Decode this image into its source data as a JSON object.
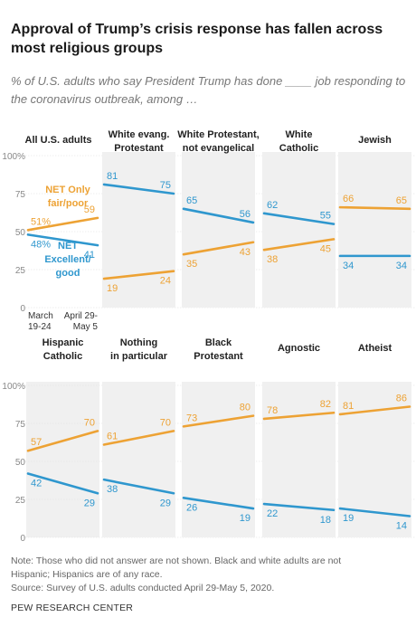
{
  "title": "Approval of Trump’s crisis response has fallen across most religious groups",
  "subtitle": "% of U.S. adults who say President Trump has done ____ job responding to the coronavirus outbreak, among …",
  "note_line1": "Note: Those who did not answer are not shown. Black and white adults are not",
  "note_line2": "Hispanic; Hispanics are of any race.",
  "source": "Source: Survey of U.S. adults conducted April 29-May 5, 2020.",
  "org": "PEW RESEARCH CENTER",
  "colors": {
    "fair_poor": "#eda234",
    "excellent_good": "#2f97ce",
    "panel_bg": "#f0f0f0",
    "grid": "#dddddd"
  },
  "chart_data": {
    "type": "line",
    "x": [
      "March 19-24",
      "April 29-May 5"
    ],
    "x_tick_labels": [
      [
        "March",
        "19-24"
      ],
      [
        "April 29-",
        "May 5"
      ]
    ],
    "y_ticks": [
      "100%",
      "75",
      "50",
      "25",
      "0"
    ],
    "ylim": [
      0,
      100
    ],
    "grid": true,
    "series_labels": {
      "fair_poor": [
        "NET Only",
        "fair/poor"
      ],
      "excellent_good": [
        "NET",
        "Excellent/",
        "good"
      ]
    },
    "panels": [
      {
        "label": [
          "All U.S. adults"
        ],
        "fair_poor": [
          51,
          59
        ],
        "excellent_good": [
          48,
          41
        ],
        "fair_poor_labels": [
          "51%",
          "59"
        ],
        "excellent_good_labels": [
          "48%",
          "41"
        ]
      },
      {
        "label": [
          "White evang.",
          "Protestant"
        ],
        "fair_poor": [
          19,
          24
        ],
        "excellent_good": [
          81,
          75
        ],
        "fair_poor_labels": [
          "19",
          "24"
        ],
        "excellent_good_labels": [
          "81",
          "75"
        ]
      },
      {
        "label": [
          "White Protestant,",
          "not evangelical"
        ],
        "fair_poor": [
          35,
          43
        ],
        "excellent_good": [
          65,
          56
        ],
        "fair_poor_labels": [
          "35",
          "43"
        ],
        "excellent_good_labels": [
          "65",
          "56"
        ]
      },
      {
        "label": [
          "White",
          "Catholic"
        ],
        "fair_poor": [
          38,
          45
        ],
        "excellent_good": [
          62,
          55
        ],
        "fair_poor_labels": [
          "38",
          "45"
        ],
        "excellent_good_labels": [
          "62",
          "55"
        ]
      },
      {
        "label": [
          "Jewish"
        ],
        "fair_poor": [
          66,
          65
        ],
        "excellent_good": [
          34,
          34
        ],
        "fair_poor_labels": [
          "66",
          "65"
        ],
        "excellent_good_labels": [
          "34",
          "34"
        ]
      },
      {
        "label": [
          "Hispanic",
          "Catholic"
        ],
        "fair_poor": [
          57,
          70
        ],
        "excellent_good": [
          42,
          29
        ],
        "fair_poor_labels": [
          "57",
          "70"
        ],
        "excellent_good_labels": [
          "42",
          "29"
        ]
      },
      {
        "label": [
          "Nothing",
          "in particular"
        ],
        "fair_poor": [
          61,
          70
        ],
        "excellent_good": [
          38,
          29
        ],
        "fair_poor_labels": [
          "61",
          "70"
        ],
        "excellent_good_labels": [
          "38",
          "29"
        ]
      },
      {
        "label": [
          "Black",
          "Protestant"
        ],
        "fair_poor": [
          73,
          80
        ],
        "excellent_good": [
          26,
          19
        ],
        "fair_poor_labels": [
          "73",
          "80"
        ],
        "excellent_good_labels": [
          "26",
          "19"
        ]
      },
      {
        "label": [
          "Agnostic"
        ],
        "fair_poor": [
          78,
          82
        ],
        "excellent_good": [
          22,
          18
        ],
        "fair_poor_labels": [
          "78",
          "82"
        ],
        "excellent_good_labels": [
          "22",
          "18"
        ]
      },
      {
        "label": [
          "Atheist"
        ],
        "fair_poor": [
          81,
          86
        ],
        "excellent_good": [
          19,
          14
        ],
        "fair_poor_labels": [
          "81",
          "86"
        ],
        "excellent_good_labels": [
          "19",
          "14"
        ]
      }
    ]
  }
}
